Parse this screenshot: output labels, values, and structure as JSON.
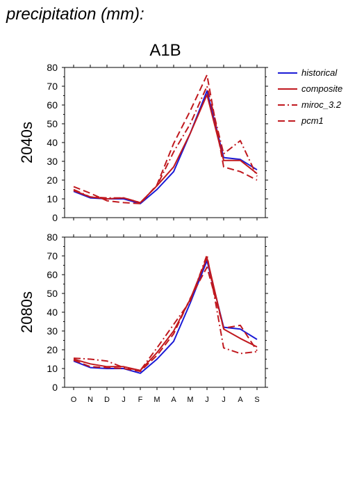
{
  "title": "precipitation (mm):",
  "scenario": "A1B",
  "legend": [
    {
      "label": "historical",
      "color": "#1a1ad6",
      "dash": "solid"
    },
    {
      "label": "composite",
      "color": "#c0181e",
      "dash": "solid"
    },
    {
      "label": "miroc_3.2",
      "color": "#c0181e",
      "dash": "dashdot"
    },
    {
      "label": "pcm1",
      "color": "#c0181e",
      "dash": "dash"
    }
  ],
  "chart_data": [
    {
      "type": "line",
      "panel_label": "2040s",
      "categories": [
        "O",
        "N",
        "D",
        "J",
        "F",
        "M",
        "A",
        "M",
        "J",
        "J",
        "A",
        "S"
      ],
      "ylim": [
        0,
        80
      ],
      "yticks": [
        0,
        10,
        20,
        30,
        40,
        50,
        60,
        70,
        80
      ],
      "series": [
        {
          "name": "historical",
          "color": "#1a1ad6",
          "dash": "solid",
          "values": [
            14,
            10.5,
            10,
            10,
            7.5,
            15,
            24.5,
            45,
            67.5,
            32,
            31,
            25.5
          ]
        },
        {
          "name": "composite",
          "color": "#c0181e",
          "dash": "solid",
          "values": [
            14.5,
            11,
            10,
            10.5,
            8,
            17,
            27,
            45,
            65.5,
            30.5,
            30.5,
            23.5
          ]
        },
        {
          "name": "miroc_3.2",
          "color": "#c0181e",
          "dash": "dashdot",
          "values": [
            15,
            11,
            10.5,
            10.5,
            8,
            17,
            35,
            50,
            70,
            34,
            41,
            22
          ]
        },
        {
          "name": "pcm1",
          "color": "#c0181e",
          "dash": "dash",
          "values": [
            16.5,
            13,
            9,
            8,
            7.5,
            17.5,
            39.5,
            57,
            76,
            27,
            24.5,
            20
          ]
        }
      ]
    },
    {
      "type": "line",
      "panel_label": "2080s",
      "categories": [
        "O",
        "N",
        "D",
        "J",
        "F",
        "M",
        "A",
        "M",
        "J",
        "J",
        "A",
        "S"
      ],
      "ylim": [
        0,
        80
      ],
      "yticks": [
        0,
        10,
        20,
        30,
        40,
        50,
        60,
        70,
        80
      ],
      "series": [
        {
          "name": "historical",
          "color": "#1a1ad6",
          "dash": "solid",
          "values": [
            14,
            10.5,
            10,
            10,
            7.5,
            15,
            24.5,
            45,
            67.5,
            32,
            31,
            25.5
          ]
        },
        {
          "name": "composite",
          "color": "#c0181e",
          "dash": "solid",
          "values": [
            15,
            12.5,
            11,
            11,
            9,
            18.5,
            30,
            47,
            69,
            31,
            26,
            21.5
          ]
        },
        {
          "name": "miroc_3.2",
          "color": "#c0181e",
          "dash": "dashdot",
          "values": [
            15.5,
            15,
            14,
            10.5,
            9,
            21,
            33.5,
            46,
            70.5,
            21,
            18,
            19
          ]
        },
        {
          "name": "pcm1",
          "color": "#c0181e",
          "dash": "dash",
          "values": [
            14.5,
            11,
            10.5,
            10,
            8.5,
            17,
            28.5,
            47.5,
            64,
            31.5,
            33,
            19.5
          ]
        }
      ]
    }
  ]
}
